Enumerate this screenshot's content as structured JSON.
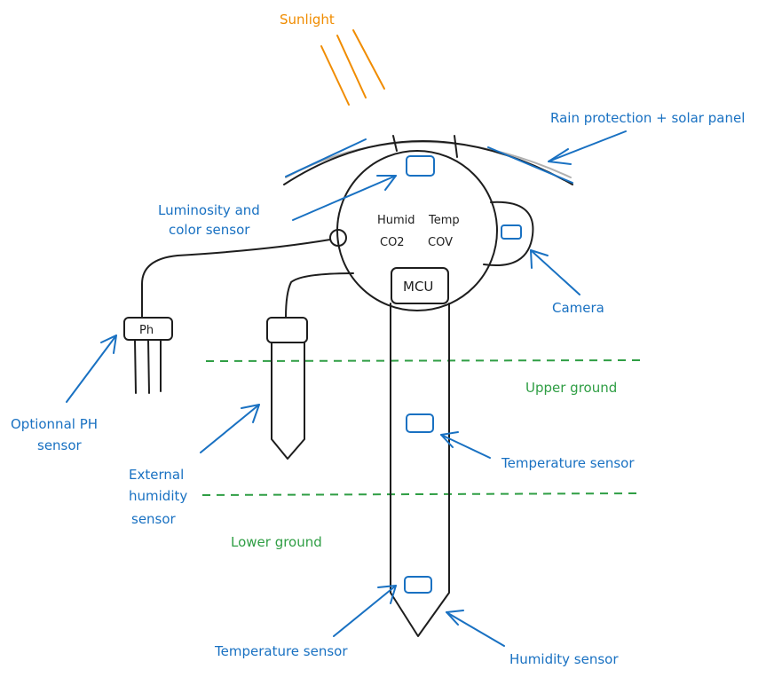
{
  "labels": {
    "sunlight": "Sunlight",
    "rain_protection": "Rain protection + solar panel",
    "luminosity_line1": "Luminosity and",
    "luminosity_line2": "color sensor",
    "humid": "Humid",
    "temp": "Temp",
    "co2": "CO2",
    "cov": "COV",
    "mcu": "MCU",
    "camera": "Camera",
    "ph_box": "Ph",
    "optional_ph_line1": "Optionnal PH",
    "optional_ph_line2": "sensor",
    "upper_ground": "Upper ground",
    "lower_ground": "Lower ground",
    "temperature_sensor_mid": "Temperature sensor",
    "ext_humidity_line1": "External",
    "ext_humidity_line2": "humidity",
    "ext_humidity_line3": "sensor",
    "temperature_sensor_bottom": "Temperature sensor",
    "humidity_sensor": "Humidity sensor"
  },
  "colors": {
    "ink": "#1e1e1e",
    "annotation": "#1971c2",
    "ground": "#2f9e44",
    "sunlight": "#f08c00"
  }
}
